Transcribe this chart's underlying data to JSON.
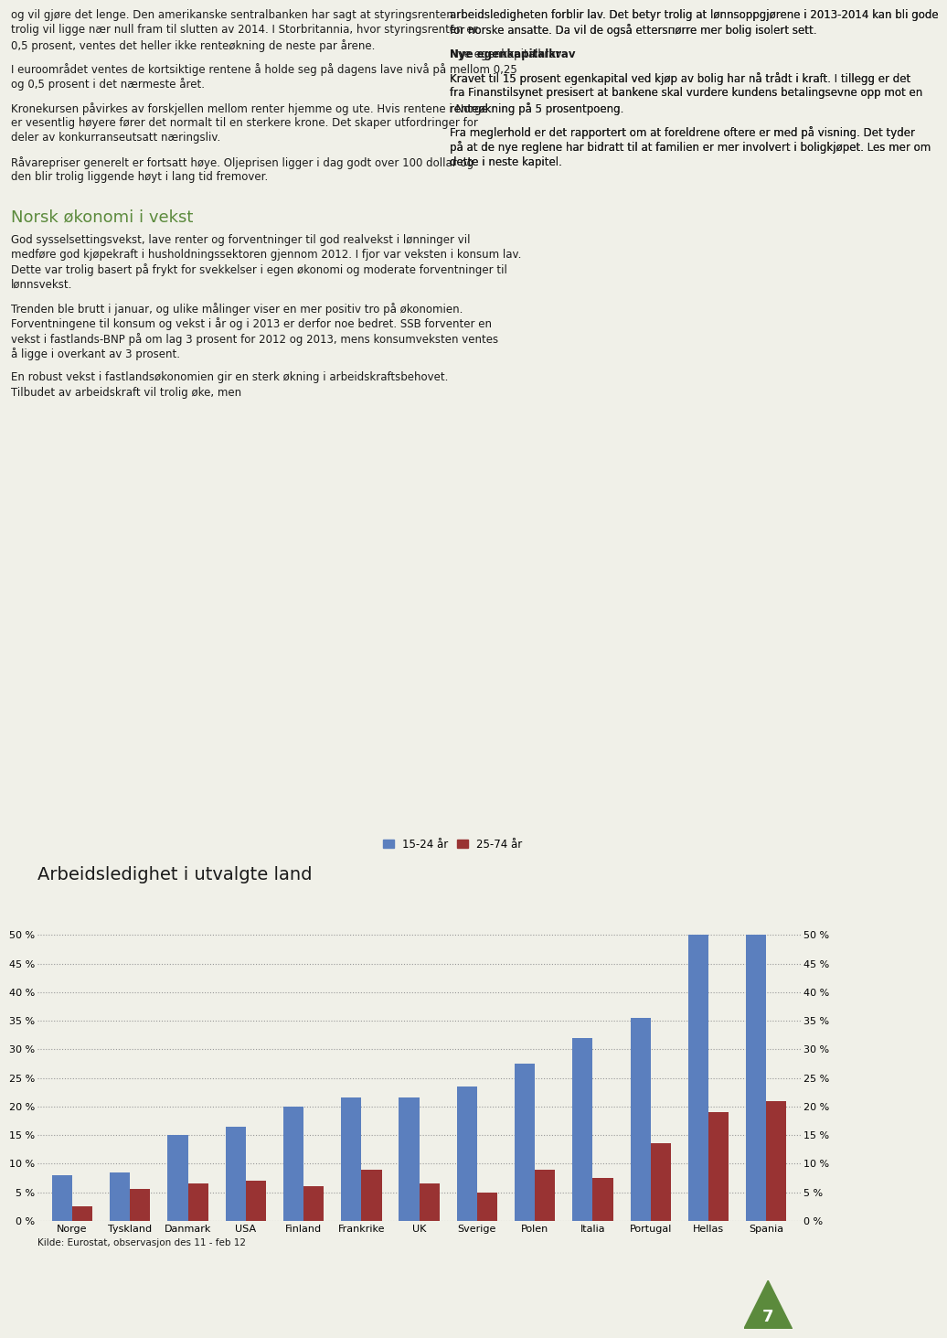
{
  "title": "Arbeidsledighet i utvalgte land",
  "legend_labels": [
    "15-24 år",
    "25-74 år"
  ],
  "bar_color_blue": "#5B7FBE",
  "bar_color_red": "#993333",
  "categories": [
    "Norge",
    "Tyskland",
    "Danmark",
    "USA",
    "Finland",
    "Frankrike",
    "UK",
    "Sverige",
    "Polen",
    "Italia",
    "Portugal",
    "Hellas",
    "Spania"
  ],
  "values_young": [
    8.0,
    8.5,
    15.0,
    16.5,
    20.0,
    21.5,
    21.5,
    23.5,
    27.5,
    32.0,
    35.5,
    50.0,
    50.0
  ],
  "values_adult": [
    2.5,
    5.5,
    6.5,
    7.0,
    6.0,
    9.0,
    6.5,
    5.0,
    9.0,
    7.5,
    13.5,
    19.0,
    21.0
  ],
  "ylim": [
    0,
    52
  ],
  "yticks": [
    0,
    5,
    10,
    15,
    20,
    25,
    30,
    35,
    40,
    45,
    50
  ],
  "source_text": "Kilde: Eurostat, observasjon des 11 - feb 12",
  "background_color": "#F0F0E8",
  "title_fontsize": 14,
  "tick_fontsize": 8,
  "source_fontsize": 7.5,
  "legend_fontsize": 8.5,
  "col1_lines": [
    "og vil gjøre det lenge. Den amerikanske sentralbanken har sagt at styringsrenten",
    "trolig vil ligge nær null fram til slutten av 2014. I Storbritannia, hvor styringsrenten er",
    "0,5 prosent, ventes det heller ikke renteøkning de neste par årene.",
    "",
    "I euroområdet ventes de kortsiktige rentene å holde seg på dagens lave nivå på mellom 0,25",
    "og 0,5 prosent i det nærmeste året.",
    "",
    "Kronekursen påvirkes av forskjellen mellom renter hjemme og ute. Hvis rentene i Norge",
    "er vesentlig høyere fører det normalt til en sterkere krone. Det skaper utfordringer for",
    "deler av konkurranseutsatt næringsliv.",
    "",
    "Råvarepriser generelt er fortsatt høye. Oljeprisen ligger i dag godt over 100 dollar og",
    "den blir trolig liggende høyt i lang tid fremover."
  ],
  "col2_lines": [
    "arbeidsledigheten forblir lav. Det betyr trolig at lønnsoppgjørene i 2013-2014 kan bli gode",
    "for norske ansatte. Da vil de også ettersпørre mer bolig isolert sett.",
    "",
    "Nye egenkapitalkrav",
    "",
    "Kravet til 15 prosent egenkapital ved kjøp av bolig har nå trådt i kraft. I tillegg er det",
    "fra Finanstilsynet presisert at bankene skal vurdere kundens betalingsevne opp mot en",
    "renteøkning på 5 prosentpoeng.",
    "",
    "Fra meglerhold er det rapportert om at foreldrene oftere er med på visning. Det tyder",
    "på at de nye reglene har bidratt til at familien er mer involvert i boligkjøpet. Les mer om",
    "dette i neste kapitel."
  ],
  "section_heading": "Norsk økonomi i vekst",
  "section_heading_color": "#5B8A3C",
  "section_col1_lines": [
    "God sysselsettingsvekst, lave renter og forventninger til god realvekst i lønninger vil",
    "medføre god kjøpekraft i husholdningssektoren gjennom 2012. I fjor var veksten i konsum lav.",
    "Dette var trolig basert på frykt for svekkelser i egen økonomi og moderate forventninger til",
    "lønnsvekst.",
    "",
    "Trenden ble brutt i januar, og ulike målinger viser en mer positiv tro på økonomien.",
    "Forventningene til konsum og vekst i år og i 2013 er derfor noe bedret. SSB forventer en",
    "vekst i fastlands-BNP på om lag 3 prosent for 2012 og 2013, mens konsumveksten ventes",
    "å ligge i overkant av 3 prosent.",
    "",
    "En robust vekst i fastlandsøkonomien gir en sterk økning i arbeidskraftsbehovet.",
    "Tilbudet av arbeidskraft vil trolig øke, men"
  ],
  "page_number": "7",
  "page_number_bg": "#5B8A3C"
}
